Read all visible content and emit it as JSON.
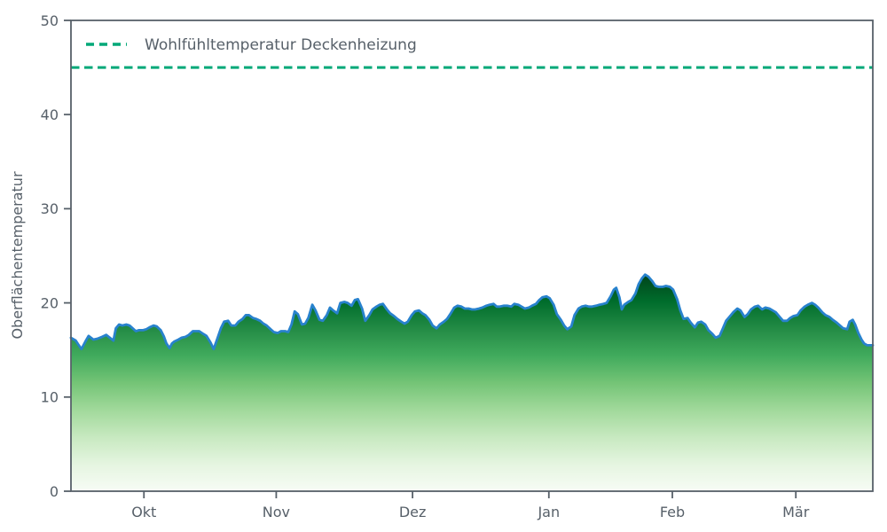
{
  "chart_data": {
    "type": "area",
    "title": "",
    "xlabel": "",
    "ylabel": "Oberflächentemperatur",
    "ylim": [
      0,
      50
    ],
    "yticks": [
      0,
      10,
      20,
      30,
      40,
      50
    ],
    "x_ticks": [
      {
        "label": "Okt",
        "f": 0.091
      },
      {
        "label": "Nov",
        "f": 0.256
      },
      {
        "label": "Dez",
        "f": 0.426
      },
      {
        "label": "Jan",
        "f": 0.596
      },
      {
        "label": "Feb",
        "f": 0.75
      },
      {
        "label": "Mär",
        "f": 0.904
      }
    ],
    "grid": false,
    "legend": {
      "position": "upper-left",
      "entries": [
        {
          "label": "Wohlfühltemperatur Deckenheizung",
          "style": "dashed",
          "color": "#00a878"
        }
      ]
    },
    "reference_line": {
      "label": "Wohlfühltemperatur Deckenheizung",
      "value": 45
    },
    "series": [
      {
        "name": "Oberflächentemperatur",
        "points": [
          [
            0.0,
            16.3
          ],
          [
            0.006,
            16.0
          ],
          [
            0.009,
            15.6
          ],
          [
            0.013,
            15.1
          ],
          [
            0.018,
            15.9
          ],
          [
            0.022,
            16.5
          ],
          [
            0.028,
            16.1
          ],
          [
            0.033,
            16.2
          ],
          [
            0.039,
            16.4
          ],
          [
            0.044,
            16.6
          ],
          [
            0.05,
            16.2
          ],
          [
            0.053,
            16.0
          ],
          [
            0.056,
            17.3
          ],
          [
            0.06,
            17.7
          ],
          [
            0.064,
            17.6
          ],
          [
            0.069,
            17.7
          ],
          [
            0.073,
            17.6
          ],
          [
            0.077,
            17.3
          ],
          [
            0.081,
            17.0
          ],
          [
            0.085,
            17.1
          ],
          [
            0.09,
            17.1
          ],
          [
            0.094,
            17.2
          ],
          [
            0.098,
            17.4
          ],
          [
            0.103,
            17.6
          ],
          [
            0.107,
            17.5
          ],
          [
            0.112,
            17.1
          ],
          [
            0.116,
            16.4
          ],
          [
            0.119,
            15.7
          ],
          [
            0.123,
            15.2
          ],
          [
            0.126,
            15.7
          ],
          [
            0.129,
            15.9
          ],
          [
            0.134,
            16.1
          ],
          [
            0.138,
            16.3
          ],
          [
            0.143,
            16.4
          ],
          [
            0.147,
            16.6
          ],
          [
            0.152,
            17.0
          ],
          [
            0.156,
            17.0
          ],
          [
            0.16,
            17.0
          ],
          [
            0.165,
            16.7
          ],
          [
            0.169,
            16.5
          ],
          [
            0.174,
            15.8
          ],
          [
            0.178,
            15.1
          ],
          [
            0.183,
            16.3
          ],
          [
            0.187,
            17.3
          ],
          [
            0.191,
            18.0
          ],
          [
            0.196,
            18.1
          ],
          [
            0.2,
            17.6
          ],
          [
            0.205,
            17.6
          ],
          [
            0.209,
            18.0
          ],
          [
            0.214,
            18.3
          ],
          [
            0.218,
            18.7
          ],
          [
            0.222,
            18.7
          ],
          [
            0.227,
            18.4
          ],
          [
            0.231,
            18.3
          ],
          [
            0.236,
            18.1
          ],
          [
            0.24,
            17.8
          ],
          [
            0.244,
            17.6
          ],
          [
            0.249,
            17.2
          ],
          [
            0.253,
            16.9
          ],
          [
            0.258,
            16.8
          ],
          [
            0.262,
            17.0
          ],
          [
            0.267,
            17.0
          ],
          [
            0.271,
            16.9
          ],
          [
            0.275,
            17.7
          ],
          [
            0.279,
            19.1
          ],
          [
            0.283,
            18.8
          ],
          [
            0.288,
            17.7
          ],
          [
            0.292,
            17.8
          ],
          [
            0.296,
            18.4
          ],
          [
            0.301,
            19.8
          ],
          [
            0.305,
            19.2
          ],
          [
            0.31,
            18.2
          ],
          [
            0.314,
            18.1
          ],
          [
            0.319,
            18.7
          ],
          [
            0.323,
            19.5
          ],
          [
            0.327,
            19.2
          ],
          [
            0.332,
            18.9
          ],
          [
            0.336,
            20.0
          ],
          [
            0.341,
            20.1
          ],
          [
            0.345,
            20.0
          ],
          [
            0.35,
            19.7
          ],
          [
            0.354,
            20.3
          ],
          [
            0.358,
            20.4
          ],
          [
            0.363,
            19.4
          ],
          [
            0.367,
            18.1
          ],
          [
            0.372,
            18.7
          ],
          [
            0.376,
            19.3
          ],
          [
            0.381,
            19.6
          ],
          [
            0.385,
            19.8
          ],
          [
            0.389,
            19.9
          ],
          [
            0.394,
            19.3
          ],
          [
            0.398,
            18.9
          ],
          [
            0.403,
            18.6
          ],
          [
            0.407,
            18.3
          ],
          [
            0.412,
            18.0
          ],
          [
            0.416,
            17.8
          ],
          [
            0.42,
            18.0
          ],
          [
            0.425,
            18.7
          ],
          [
            0.429,
            19.1
          ],
          [
            0.434,
            19.2
          ],
          [
            0.438,
            18.9
          ],
          [
            0.442,
            18.7
          ],
          [
            0.447,
            18.2
          ],
          [
            0.451,
            17.6
          ],
          [
            0.456,
            17.3
          ],
          [
            0.46,
            17.7
          ],
          [
            0.465,
            18.0
          ],
          [
            0.469,
            18.3
          ],
          [
            0.473,
            18.8
          ],
          [
            0.478,
            19.5
          ],
          [
            0.482,
            19.7
          ],
          [
            0.487,
            19.6
          ],
          [
            0.491,
            19.4
          ],
          [
            0.496,
            19.4
          ],
          [
            0.5,
            19.3
          ],
          [
            0.504,
            19.3
          ],
          [
            0.509,
            19.4
          ],
          [
            0.513,
            19.5
          ],
          [
            0.518,
            19.7
          ],
          [
            0.522,
            19.8
          ],
          [
            0.527,
            19.9
          ],
          [
            0.531,
            19.6
          ],
          [
            0.535,
            19.6
          ],
          [
            0.54,
            19.7
          ],
          [
            0.544,
            19.7
          ],
          [
            0.549,
            19.6
          ],
          [
            0.553,
            19.9
          ],
          [
            0.558,
            19.8
          ],
          [
            0.562,
            19.6
          ],
          [
            0.566,
            19.4
          ],
          [
            0.571,
            19.5
          ],
          [
            0.575,
            19.7
          ],
          [
            0.58,
            19.9
          ],
          [
            0.584,
            20.3
          ],
          [
            0.588,
            20.6
          ],
          [
            0.593,
            20.7
          ],
          [
            0.597,
            20.5
          ],
          [
            0.602,
            19.8
          ],
          [
            0.606,
            18.8
          ],
          [
            0.611,
            18.2
          ],
          [
            0.615,
            17.6
          ],
          [
            0.619,
            17.2
          ],
          [
            0.624,
            17.5
          ],
          [
            0.628,
            18.7
          ],
          [
            0.633,
            19.4
          ],
          [
            0.637,
            19.6
          ],
          [
            0.642,
            19.7
          ],
          [
            0.646,
            19.6
          ],
          [
            0.65,
            19.6
          ],
          [
            0.655,
            19.7
          ],
          [
            0.659,
            19.8
          ],
          [
            0.664,
            19.9
          ],
          [
            0.668,
            20.0
          ],
          [
            0.673,
            20.7
          ],
          [
            0.677,
            21.4
          ],
          [
            0.68,
            21.6
          ],
          [
            0.684,
            20.6
          ],
          [
            0.687,
            19.3
          ],
          [
            0.69,
            19.8
          ],
          [
            0.695,
            20.1
          ],
          [
            0.699,
            20.3
          ],
          [
            0.704,
            21.0
          ],
          [
            0.708,
            22.0
          ],
          [
            0.712,
            22.6
          ],
          [
            0.716,
            23.0
          ],
          [
            0.72,
            22.8
          ],
          [
            0.725,
            22.3
          ],
          [
            0.729,
            21.8
          ],
          [
            0.733,
            21.7
          ],
          [
            0.738,
            21.7
          ],
          [
            0.742,
            21.8
          ],
          [
            0.747,
            21.7
          ],
          [
            0.751,
            21.4
          ],
          [
            0.756,
            20.4
          ],
          [
            0.76,
            19.2
          ],
          [
            0.764,
            18.3
          ],
          [
            0.769,
            18.4
          ],
          [
            0.773,
            17.9
          ],
          [
            0.778,
            17.4
          ],
          [
            0.782,
            17.9
          ],
          [
            0.786,
            18.0
          ],
          [
            0.791,
            17.7
          ],
          [
            0.795,
            17.1
          ],
          [
            0.8,
            16.7
          ],
          [
            0.804,
            16.3
          ],
          [
            0.809,
            16.5
          ],
          [
            0.813,
            17.3
          ],
          [
            0.817,
            18.1
          ],
          [
            0.822,
            18.6
          ],
          [
            0.826,
            19.0
          ],
          [
            0.831,
            19.4
          ],
          [
            0.835,
            19.2
          ],
          [
            0.84,
            18.5
          ],
          [
            0.844,
            18.8
          ],
          [
            0.848,
            19.3
          ],
          [
            0.853,
            19.6
          ],
          [
            0.857,
            19.7
          ],
          [
            0.862,
            19.3
          ],
          [
            0.866,
            19.5
          ],
          [
            0.871,
            19.4
          ],
          [
            0.875,
            19.2
          ],
          [
            0.879,
            19.0
          ],
          [
            0.884,
            18.5
          ],
          [
            0.888,
            18.1
          ],
          [
            0.893,
            18.1
          ],
          [
            0.897,
            18.4
          ],
          [
            0.901,
            18.6
          ],
          [
            0.906,
            18.7
          ],
          [
            0.91,
            19.2
          ],
          [
            0.915,
            19.6
          ],
          [
            0.919,
            19.8
          ],
          [
            0.924,
            20.0
          ],
          [
            0.928,
            19.8
          ],
          [
            0.932,
            19.5
          ],
          [
            0.937,
            19.0
          ],
          [
            0.941,
            18.7
          ],
          [
            0.946,
            18.5
          ],
          [
            0.95,
            18.2
          ],
          [
            0.955,
            17.9
          ],
          [
            0.959,
            17.6
          ],
          [
            0.963,
            17.3
          ],
          [
            0.968,
            17.2
          ],
          [
            0.971,
            18.0
          ],
          [
            0.975,
            18.2
          ],
          [
            0.978,
            17.7
          ],
          [
            0.982,
            16.8
          ],
          [
            0.986,
            16.1
          ],
          [
            0.989,
            15.7
          ],
          [
            0.993,
            15.5
          ],
          [
            1.0,
            15.5
          ]
        ]
      }
    ]
  },
  "style": {
    "background": "#ffffff",
    "axis_color": "#576069",
    "line_color": "#2882cd",
    "reference_color": "#00a878",
    "fill_gradient": [
      "#00441b",
      "#006d2c",
      "#238b45",
      "#41ab5d",
      "#74c476",
      "#a1d99b",
      "#c7e9c0",
      "#e5f5e0",
      "#f7fcf5"
    ]
  }
}
